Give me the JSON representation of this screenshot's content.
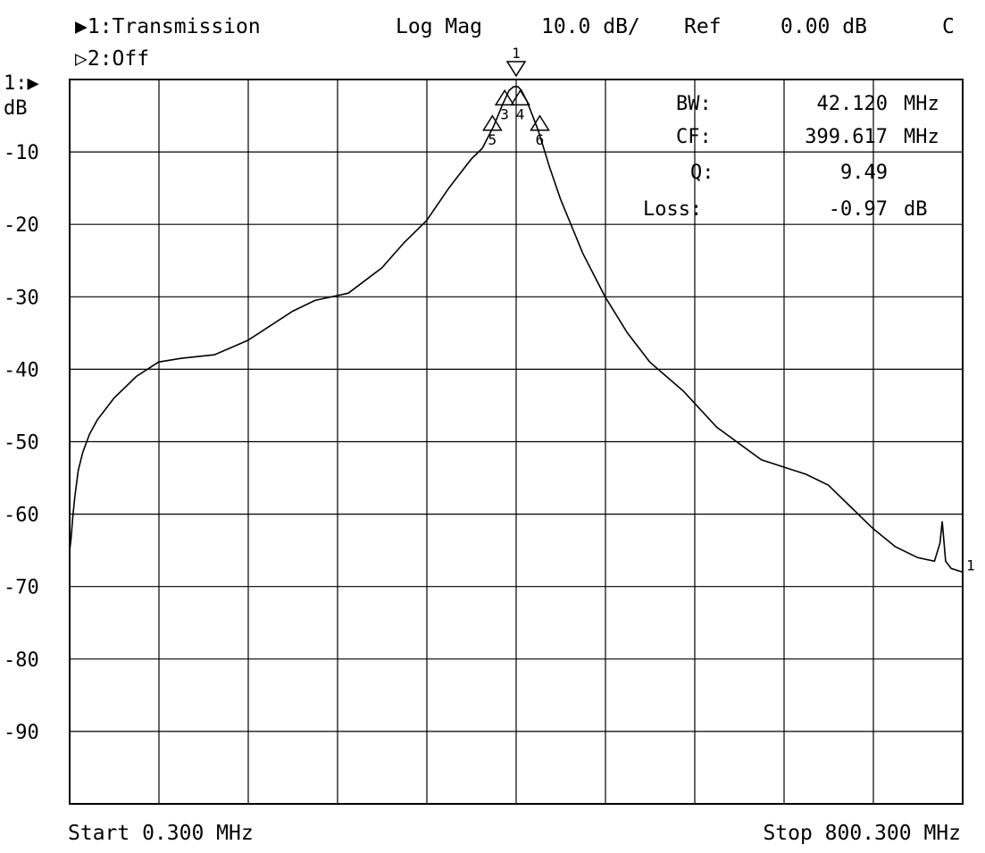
{
  "header": {
    "channel1": "▶1:Transmission",
    "channel2": "▷2:Off",
    "format": "Log Mag",
    "scale": "10.0 dB/",
    "ref_label": "Ref",
    "ref_value": "0.00 dB",
    "flag": "C"
  },
  "axis": {
    "ref_marker": "1:▶",
    "unit": "dB"
  },
  "readout": {
    "bw_label": "BW:",
    "bw_value": "42.120",
    "bw_unit": "MHz",
    "cf_label": "CF:",
    "cf_value": "399.617",
    "cf_unit": "MHz",
    "q_label": "Q:",
    "q_value": "9.49",
    "loss_label": "Loss:",
    "loss_value": "-0.97",
    "loss_unit": "dB"
  },
  "footer": {
    "start": "Start 0.300 MHz",
    "stop": "Stop 800.300 MHz"
  },
  "markers": [
    {
      "label": "1",
      "x": 400.3,
      "y": 0.5,
      "dir": "down"
    },
    {
      "label": "3",
      "x": 390.0,
      "y": -3.5,
      "dir": "up"
    },
    {
      "label": "4",
      "x": 404.0,
      "y": -3.5,
      "dir": "up"
    },
    {
      "label": "5",
      "x": 379.0,
      "y": -7.0,
      "dir": "up"
    },
    {
      "label": "6",
      "x": 421.5,
      "y": -7.0,
      "dir": "up"
    }
  ],
  "trace_end_label": "1",
  "chart_data": {
    "type": "line",
    "title": "",
    "xlabel": "",
    "ylabel": "dB",
    "xlim": [
      0.3,
      800.3
    ],
    "ylim": [
      -100,
      0
    ],
    "grid": true,
    "y_ticks": [
      -10,
      -20,
      -30,
      -40,
      -50,
      -60,
      -70,
      -80,
      -90
    ],
    "y_tick_labels": [
      "-10",
      "-20",
      "-30",
      "-40",
      "-50",
      "-60",
      "-70",
      "-80",
      "-90"
    ],
    "series": [
      {
        "name": "",
        "x": [
          0.3,
          1.5,
          3,
          5,
          8,
          12,
          18,
          25,
          40,
          60,
          80,
          100,
          130,
          160,
          200,
          220,
          250,
          280,
          300,
          320,
          340,
          360,
          370,
          380,
          388,
          394,
          398,
          402,
          405,
          410,
          415,
          420,
          425,
          430,
          440,
          460,
          480,
          500,
          520,
          550,
          580,
          620,
          660,
          680,
          700,
          720,
          740,
          760,
          775,
          780,
          782,
          785,
          790,
          800.3
        ],
        "y": [
          -65,
          -63.5,
          -60.5,
          -57.5,
          -54,
          -51.5,
          -49,
          -47,
          -44,
          -41,
          -39,
          -38.5,
          -38,
          -36,
          -32,
          -30.5,
          -29.5,
          -26,
          -22.5,
          -19.5,
          -15,
          -11,
          -9.5,
          -6.5,
          -3.5,
          -1.5,
          -1,
          -1,
          -1.5,
          -3,
          -5,
          -7,
          -9.5,
          -12,
          -16.5,
          -24,
          -30,
          -35,
          -39,
          -43,
          -48,
          -52.5,
          -54.5,
          -56,
          -59,
          -62,
          -64.5,
          -66,
          -66.5,
          -64,
          -61,
          -66.5,
          -67.5,
          -68
        ]
      }
    ]
  }
}
